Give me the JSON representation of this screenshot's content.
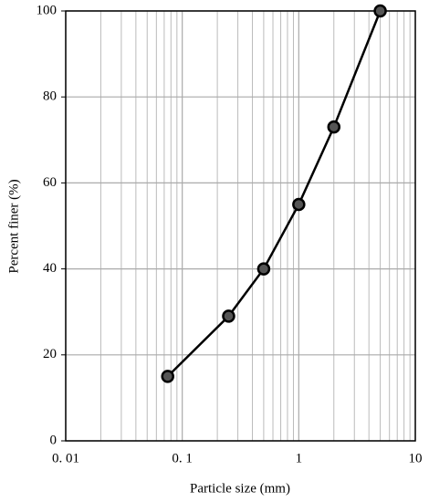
{
  "chart_data": {
    "type": "line",
    "x_label": "Particle size (mm)",
    "y_label": "Percent finer (%)",
    "x_scale": "log",
    "xlim": [
      0.01,
      10
    ],
    "xticks": [
      {
        "value": 0.01,
        "label": "0. 01"
      },
      {
        "value": 0.1,
        "label": "0. 1"
      },
      1,
      10
    ],
    "ylim": [
      0,
      100
    ],
    "yticks": [
      0,
      20,
      40,
      60,
      80,
      100
    ],
    "grid": true,
    "series": [
      {
        "color": "#000000",
        "marker_color": "#555555",
        "x": [
          0.075,
          0.25,
          0.5,
          1,
          2,
          5
        ],
        "values": [
          15,
          29,
          40,
          55,
          73,
          100
        ]
      }
    ]
  }
}
